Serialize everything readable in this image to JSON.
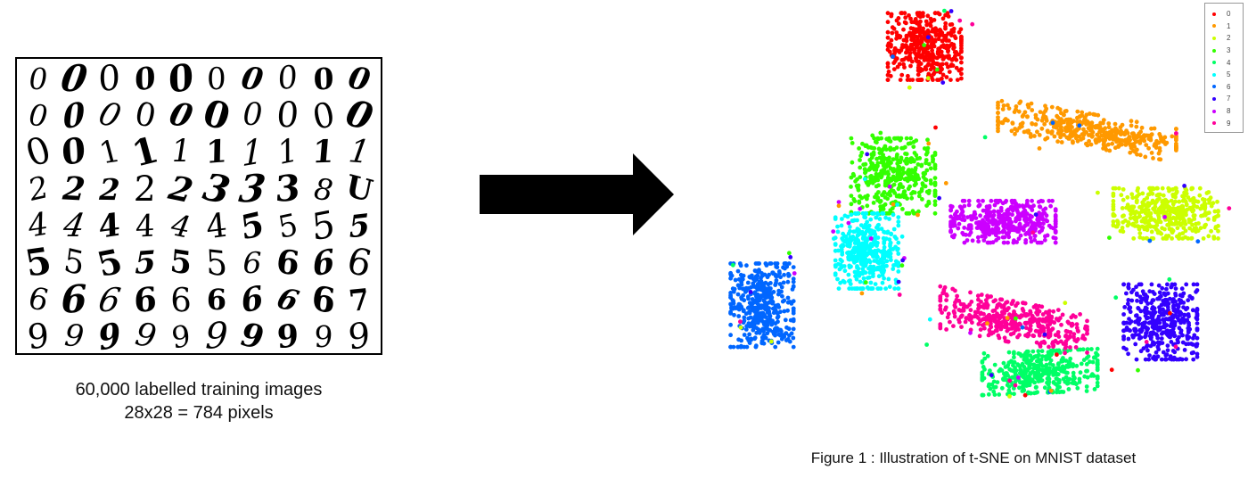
{
  "left_panel": {
    "digit_rows": [
      [
        "0",
        "0",
        "0",
        "0",
        "0",
        "0",
        "0",
        "0",
        "0",
        "0"
      ],
      [
        "0",
        "0",
        "0",
        "0",
        "0",
        "0",
        "0",
        "0",
        "0",
        "0"
      ],
      [
        "0",
        "0",
        "1",
        "1",
        "1",
        "1",
        "1",
        "1",
        "1",
        "1"
      ],
      [
        "2",
        "2",
        "2",
        "2",
        "2",
        "3",
        "3",
        "3",
        "8",
        "U"
      ],
      [
        "4",
        "4",
        "4",
        "4",
        "4",
        "4",
        "5",
        "5",
        "5",
        "5"
      ],
      [
        "5",
        "5",
        "5",
        "5",
        "5",
        "5",
        "6",
        "6",
        "6",
        "6"
      ],
      [
        "6",
        "6",
        "6",
        "6",
        "6",
        "6",
        "6",
        "6",
        "6",
        "7"
      ],
      [
        "9",
        "9",
        "9",
        "9",
        "9",
        "9",
        "9",
        "9",
        "9",
        "9"
      ]
    ],
    "caption_line1": "60,000 labelled training images",
    "caption_line2": "28x28 = 784 pixels"
  },
  "arrow": {
    "color": "#000000"
  },
  "figure_caption": "Figure 1 : Illustration of t-SNE on MNIST dataset",
  "chart_data": {
    "type": "scatter",
    "title": "",
    "xlabel": "",
    "ylabel": "",
    "grid": false,
    "axes_visible": false,
    "legend_placement": "top-right",
    "approx_points_per_cluster": 1000,
    "series": [
      {
        "name": "0",
        "color": "#ff0000",
        "centroid": [
          0.4,
          0.91
        ],
        "spread": [
          0.07,
          0.08
        ]
      },
      {
        "name": "1",
        "color": "#ff9900",
        "centroid": [
          0.71,
          0.71
        ],
        "spread": [
          0.17,
          0.04
        ]
      },
      {
        "name": "2",
        "color": "#ccff00",
        "centroid": [
          0.86,
          0.51
        ],
        "spread": [
          0.1,
          0.06
        ]
      },
      {
        "name": "3",
        "color": "#33ff00",
        "centroid": [
          0.34,
          0.6
        ],
        "spread": [
          0.08,
          0.09
        ]
      },
      {
        "name": "4",
        "color": "#00ff66",
        "centroid": [
          0.62,
          0.13
        ],
        "spread": [
          0.11,
          0.05
        ]
      },
      {
        "name": "5",
        "color": "#00ffff",
        "centroid": [
          0.29,
          0.42
        ],
        "spread": [
          0.06,
          0.09
        ]
      },
      {
        "name": "6",
        "color": "#0066ff",
        "centroid": [
          0.09,
          0.29
        ],
        "spread": [
          0.06,
          0.1
        ]
      },
      {
        "name": "7",
        "color": "#3300ff",
        "centroid": [
          0.85,
          0.25
        ],
        "spread": [
          0.07,
          0.09
        ]
      },
      {
        "name": "8",
        "color": "#cc00ff",
        "centroid": [
          0.55,
          0.49
        ],
        "spread": [
          0.1,
          0.05
        ]
      },
      {
        "name": "9",
        "color": "#ff0099",
        "centroid": [
          0.57,
          0.25
        ],
        "spread": [
          0.14,
          0.05
        ]
      }
    ]
  }
}
